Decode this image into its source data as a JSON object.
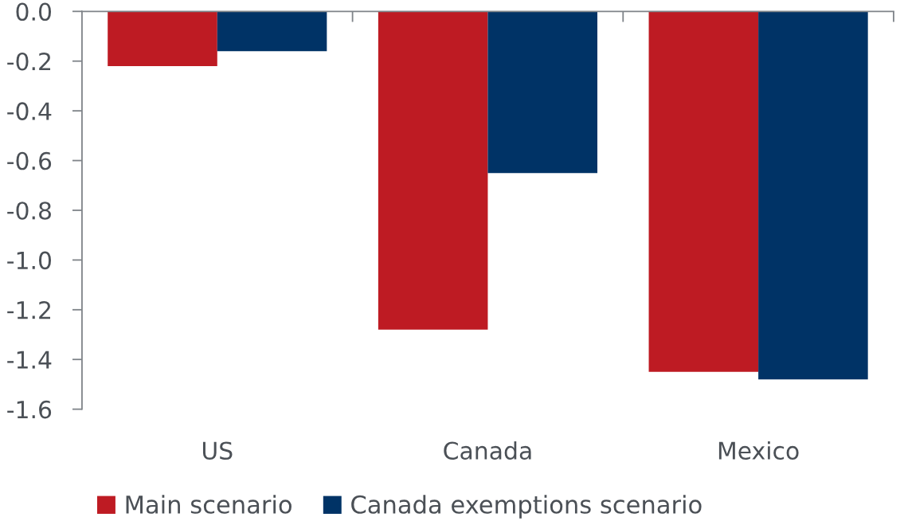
{
  "chart_data": {
    "type": "bar",
    "categories": [
      "US",
      "Canada",
      "Mexico"
    ],
    "series": [
      {
        "name": "Main scenario",
        "color": "#be1b23",
        "values": [
          -0.22,
          -1.28,
          -1.45
        ]
      },
      {
        "name": "Canada exemptions scenario",
        "color": "#003366",
        "values": [
          -0.16,
          -0.65,
          -1.48
        ]
      }
    ],
    "ylim": [
      -1.6,
      0
    ],
    "yticks": [
      {
        "value": 0,
        "label": "0.0"
      },
      {
        "value": -0.2,
        "label": "-0.2"
      },
      {
        "value": -0.4,
        "label": "-0.4"
      },
      {
        "value": -0.6,
        "label": "-0.6"
      },
      {
        "value": -0.8,
        "label": "-0.8"
      },
      {
        "value": -1.0,
        "label": "-1.0"
      },
      {
        "value": -1.2,
        "label": "-1.2"
      },
      {
        "value": -1.4,
        "label": "-1.4"
      },
      {
        "value": -1.6,
        "label": "-1.6"
      }
    ],
    "grid": false,
    "legend": "bottom"
  }
}
